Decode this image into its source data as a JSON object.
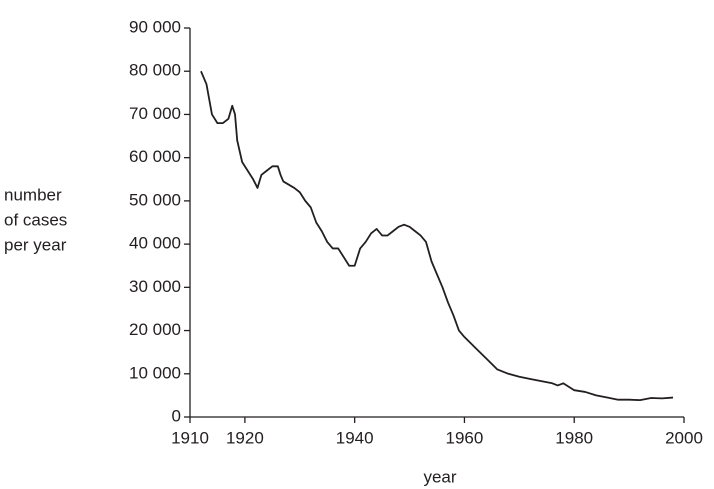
{
  "chart_data": {
    "type": "line",
    "xlabel": "year",
    "ylabel": [
      "number",
      "of cases",
      "per year"
    ],
    "x": [
      1912,
      1913,
      1914,
      1915,
      1916,
      1917,
      1917.7,
      1918.2,
      1918.6,
      1919.5,
      1920.5,
      1921.5,
      1922.3,
      1923,
      1924,
      1925,
      1926,
      1926.5,
      1927,
      1929,
      1930,
      1931,
      1932,
      1933,
      1934,
      1935,
      1936,
      1937,
      1938,
      1939,
      1940,
      1941,
      1942,
      1943,
      1944,
      1945,
      1946,
      1947,
      1948,
      1949,
      1950,
      1951,
      1952,
      1953,
      1954,
      1955,
      1956,
      1957,
      1958,
      1959,
      1960,
      1962,
      1964,
      1966,
      1968,
      1970,
      1972,
      1974,
      1976,
      1977,
      1978,
      1979,
      1980,
      1982,
      1984,
      1986,
      1988,
      1990,
      1992,
      1994,
      1996,
      1998
    ],
    "values": [
      80000,
      77000,
      70000,
      68000,
      68000,
      69000,
      72000,
      70000,
      64000,
      59000,
      57000,
      55000,
      53000,
      56000,
      57000,
      58000,
      58000,
      56000,
      54500,
      53000,
      52000,
      50000,
      48500,
      45000,
      43000,
      40500,
      39000,
      39000,
      37000,
      35000,
      35000,
      39000,
      40500,
      42500,
      43500,
      42000,
      42000,
      43000,
      44000,
      44500,
      44000,
      43000,
      42000,
      40500,
      36000,
      33000,
      30000,
      26500,
      23500,
      20000,
      18500,
      16000,
      13500,
      11000,
      10000,
      9300,
      8800,
      8300,
      7800,
      7300,
      7800,
      7000,
      6200,
      5800,
      5000,
      4500,
      4000,
      4000,
      3900,
      4400,
      4300,
      4500
    ],
    "color": "#231f20",
    "xlim": [
      1910,
      2000
    ],
    "xticks": [
      1910,
      1920,
      1940,
      1960,
      1980,
      2000
    ],
    "ylim": [
      0,
      90000
    ],
    "yticks": [
      0,
      {
        "value": 10000,
        "label": "10 000"
      },
      {
        "value": 20000,
        "label": "20 000"
      },
      {
        "value": 30000,
        "label": "30 000"
      },
      {
        "value": 40000,
        "label": "40 000"
      },
      {
        "value": 50000,
        "label": "50 000"
      },
      {
        "value": 60000,
        "label": "60 000"
      },
      {
        "value": 70000,
        "label": "70 000"
      },
      {
        "value": 80000,
        "label": "80 000"
      },
      {
        "value": 90000,
        "label": "90 000"
      }
    ],
    "grid": false
  }
}
